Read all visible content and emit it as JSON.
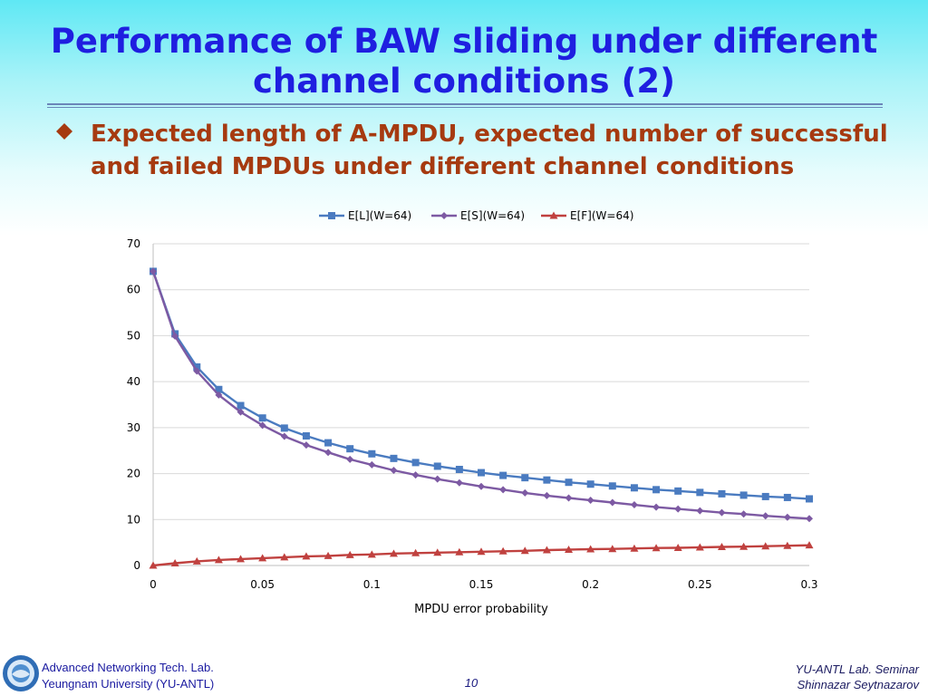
{
  "slide": {
    "title_line1": "Performance of BAW sliding under different",
    "title_line2": "channel conditions (2)",
    "bullet_line1": "Expected length of A-MPDU, expected number of successful",
    "bullet_line2": "and failed MPDUs under different channel conditions",
    "page_number": "10",
    "footer_left_line1": "Advanced Networking Tech. Lab.",
    "footer_left_line2": "Yeungnam University (YU-ANTL)",
    "footer_right_line1": "YU-ANTL Lab. Seminar",
    "footer_right_line2": "Shinnazar Seytnazarov"
  },
  "colors": {
    "title": "#1f1fe0",
    "bullet": "#a63a10",
    "series_L": "#4a7bc0",
    "series_S": "#7d5aa3",
    "series_F": "#c0413f"
  },
  "chart_data": {
    "type": "line",
    "title": "",
    "xlabel": "MPDU error probability",
    "ylabel": "",
    "xlim": [
      0,
      0.3
    ],
    "ylim": [
      0,
      70
    ],
    "xticks": [
      "0",
      "0.05",
      "0.1",
      "0.15",
      "0.2",
      "0.25",
      "0.3"
    ],
    "yticks": [
      "0",
      "10",
      "20",
      "30",
      "40",
      "50",
      "60",
      "70"
    ],
    "grid": "horizontal",
    "legend_position": "top",
    "x": [
      0,
      0.01,
      0.02,
      0.03,
      0.04,
      0.05,
      0.06,
      0.07,
      0.08,
      0.09,
      0.1,
      0.11,
      0.12,
      0.13,
      0.14,
      0.15,
      0.16,
      0.17,
      0.18,
      0.19,
      0.2,
      0.21,
      0.22,
      0.23,
      0.24,
      0.25,
      0.26,
      0.27,
      0.28,
      0.29,
      0.3
    ],
    "series": [
      {
        "name": "E[L](W=64)",
        "marker": "square",
        "color": "#4a7bc0",
        "values": [
          64,
          50.4,
          43.2,
          38.3,
          34.8,
          32.1,
          29.9,
          28.2,
          26.7,
          25.4,
          24.3,
          23.3,
          22.4,
          21.6,
          20.9,
          20.2,
          19.6,
          19.1,
          18.6,
          18.1,
          17.7,
          17.3,
          16.9,
          16.5,
          16.2,
          15.9,
          15.6,
          15.3,
          15.0,
          14.8,
          14.5
        ]
      },
      {
        "name": "E[S](W=64)",
        "marker": "diamond",
        "color": "#7d5aa3",
        "values": [
          64,
          49.9,
          42.3,
          37.1,
          33.4,
          30.5,
          28.1,
          26.2,
          24.6,
          23.1,
          21.9,
          20.7,
          19.7,
          18.8,
          18.0,
          17.2,
          16.5,
          15.8,
          15.2,
          14.7,
          14.2,
          13.7,
          13.2,
          12.7,
          12.3,
          11.9,
          11.5,
          11.2,
          10.8,
          10.5,
          10.2
        ]
      },
      {
        "name": "E[F](W=64)",
        "marker": "triangle",
        "color": "#c0413f",
        "values": [
          0,
          0.5,
          0.9,
          1.2,
          1.4,
          1.6,
          1.8,
          2.0,
          2.1,
          2.3,
          2.4,
          2.6,
          2.7,
          2.8,
          2.9,
          3.0,
          3.1,
          3.2,
          3.35,
          3.45,
          3.55,
          3.6,
          3.7,
          3.8,
          3.85,
          3.95,
          4.05,
          4.1,
          4.2,
          4.3,
          4.4
        ]
      }
    ]
  }
}
